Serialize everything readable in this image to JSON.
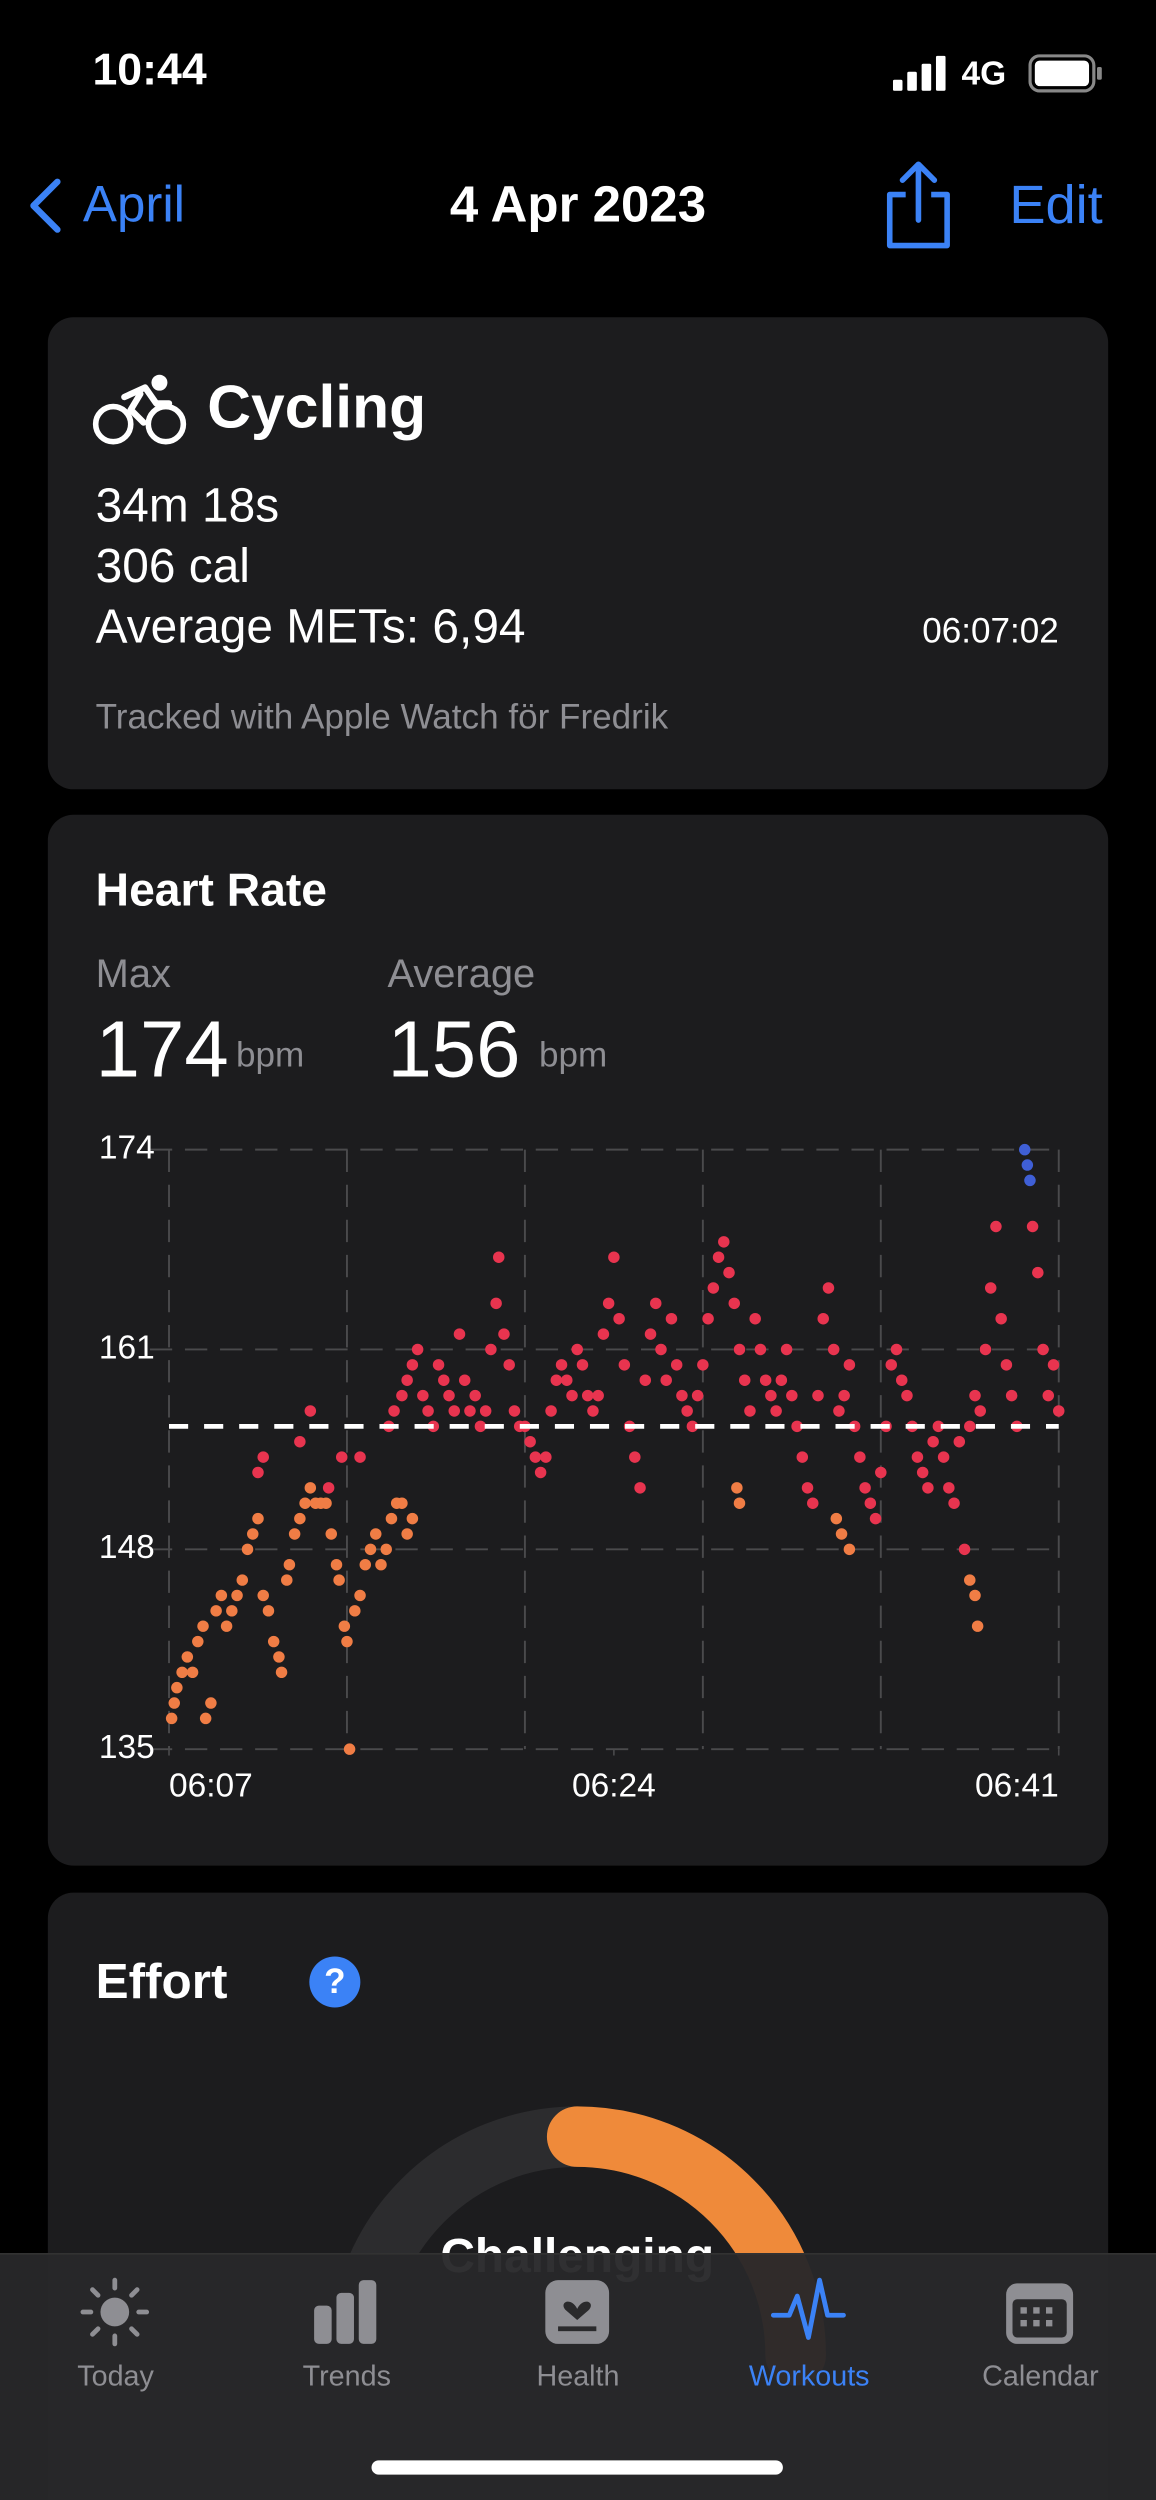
{
  "status_bar": {
    "time": "10:44",
    "network": "4G"
  },
  "nav": {
    "back": "April",
    "title": "4 Apr 2023",
    "edit": "Edit"
  },
  "workout": {
    "type": "Cycling",
    "duration": "34m 18s",
    "energy": "306 cal",
    "mets": "Average METs: 6,94",
    "start_time": "06:07:02",
    "source": "Tracked with Apple Watch för Fredrik"
  },
  "heart_rate": {
    "max": {
      "label": "Max",
      "value": 174,
      "unit": "bpm"
    },
    "average": {
      "label": "Average",
      "value": 156,
      "unit": "bpm"
    }
  },
  "chart_data": {
    "type": "scatter",
    "title": "Heart Rate",
    "xlim": [
      367,
      401
    ],
    "xticks": [
      {
        "value": 367,
        "label": "06:07"
      },
      {
        "value": 384,
        "label": "06:24"
      },
      {
        "value": 401,
        "label": "06:41"
      }
    ],
    "ylim": [
      135,
      174
    ],
    "yticks": [
      135,
      148,
      161,
      174
    ],
    "grid": true,
    "series": [
      {
        "color": "#f07d45",
        "x": [
          367.1,
          367.2,
          367.3,
          367.5,
          367.7,
          367.9,
          368.1,
          368.3,
          368.4,
          368.6,
          368.8,
          369.0,
          369.2,
          369.4,
          369.6,
          369.8,
          370.0,
          370.2,
          370.4,
          370.6,
          370.8,
          371.0,
          371.2,
          371.3,
          371.5,
          371.6,
          371.8,
          372.0,
          372.2,
          372.4,
          372.6,
          372.8,
          373.0,
          373.2,
          373.4,
          373.5,
          373.7,
          373.8,
          373.9,
          374.1,
          374.3,
          374.5,
          374.7,
          374.9,
          375.1,
          375.3,
          375.5,
          375.7,
          375.9,
          376.1,
          376.3,
          388.7,
          388.8,
          392.5,
          392.7,
          393.0,
          397.6,
          397.8,
          397.9
        ],
        "values": [
          137,
          138,
          139,
          140,
          141,
          140,
          142,
          143,
          137,
          138,
          144,
          145,
          143,
          144,
          145,
          146,
          148,
          149,
          150,
          145,
          144,
          142,
          141,
          140,
          146,
          147,
          149,
          150,
          151,
          152,
          151,
          151,
          151,
          149,
          147,
          146,
          143,
          142,
          135,
          144,
          145,
          147,
          148,
          149,
          147,
          148,
          150,
          151,
          151,
          149,
          150,
          152,
          151,
          150,
          149,
          148,
          146,
          145,
          143
        ]
      },
      {
        "color": "#e8344f",
        "x": [
          370.4,
          370.6,
          372.0,
          372.4,
          373.1,
          373.6,
          374.3,
          375.4,
          375.6,
          375.9,
          376.1,
          376.3,
          376.5,
          376.7,
          376.9,
          377.1,
          377.3,
          377.5,
          377.7,
          377.9,
          378.1,
          378.3,
          378.5,
          378.7,
          378.9,
          379.1,
          379.3,
          379.5,
          379.6,
          379.8,
          380.0,
          380.2,
          380.4,
          380.6,
          380.8,
          381.0,
          381.2,
          381.4,
          381.6,
          381.8,
          382.0,
          382.2,
          382.4,
          382.6,
          382.8,
          383.0,
          383.2,
          383.4,
          383.6,
          383.8,
          384.0,
          384.2,
          384.4,
          384.6,
          384.8,
          385.0,
          385.2,
          385.4,
          385.6,
          385.8,
          386.0,
          386.2,
          386.4,
          386.6,
          386.8,
          387.0,
          387.2,
          387.4,
          387.6,
          387.8,
          388.0,
          388.2,
          388.4,
          388.6,
          388.8,
          389.0,
          389.2,
          389.4,
          389.6,
          389.8,
          390.0,
          390.2,
          390.4,
          390.6,
          390.8,
          391.0,
          391.2,
          391.4,
          391.6,
          391.8,
          392.0,
          392.2,
          392.4,
          392.6,
          392.8,
          393.0,
          393.2,
          393.4,
          393.6,
          393.8,
          394.0,
          394.2,
          394.4,
          394.6,
          394.8,
          395.0,
          395.2,
          395.4,
          395.6,
          395.8,
          396.0,
          396.2,
          396.4,
          396.6,
          396.8,
          397.0,
          397.2,
          397.4,
          397.6,
          397.8,
          398.0,
          398.2,
          398.4,
          398.6,
          398.8,
          399.0,
          399.2,
          399.4,
          400.0,
          400.2,
          400.4,
          400.6,
          400.8,
          401.0
        ],
        "values": [
          153,
          154,
          155,
          157,
          152,
          154,
          154,
          156,
          157,
          158,
          159,
          160,
          161,
          158,
          157,
          156,
          160,
          159,
          158,
          157,
          162,
          159,
          157,
          158,
          156,
          157,
          161,
          164,
          167,
          162,
          160,
          157,
          156,
          156,
          155,
          154,
          153,
          154,
          157,
          159,
          160,
          159,
          158,
          161,
          160,
          158,
          157,
          158,
          162,
          164,
          167,
          163,
          160,
          156,
          154,
          152,
          159,
          162,
          164,
          161,
          159,
          163,
          160,
          158,
          157,
          156,
          158,
          160,
          163,
          165,
          167,
          168,
          166,
          164,
          161,
          159,
          157,
          163,
          161,
          159,
          158,
          157,
          159,
          161,
          158,
          156,
          154,
          152,
          151,
          158,
          163,
          165,
          161,
          157,
          158,
          160,
          156,
          154,
          152,
          151,
          150,
          153,
          156,
          160,
          161,
          159,
          158,
          156,
          154,
          153,
          152,
          155,
          156,
          154,
          152,
          151,
          155,
          148,
          156,
          158,
          157,
          161,
          165,
          169,
          163,
          160,
          158,
          156,
          169,
          166,
          161,
          158,
          160,
          157
        ]
      },
      {
        "color": "#3f5fd6",
        "x": [
          399.7,
          399.8,
          399.9
        ],
        "values": [
          174,
          173,
          172
        ]
      }
    ]
  },
  "effort": {
    "title": "Effort",
    "help": "?",
    "level": "Challenging"
  },
  "tab_bar": {
    "items": [
      "Today",
      "Trends",
      "Health",
      "Workouts",
      "Calendar"
    ],
    "active": 3
  }
}
